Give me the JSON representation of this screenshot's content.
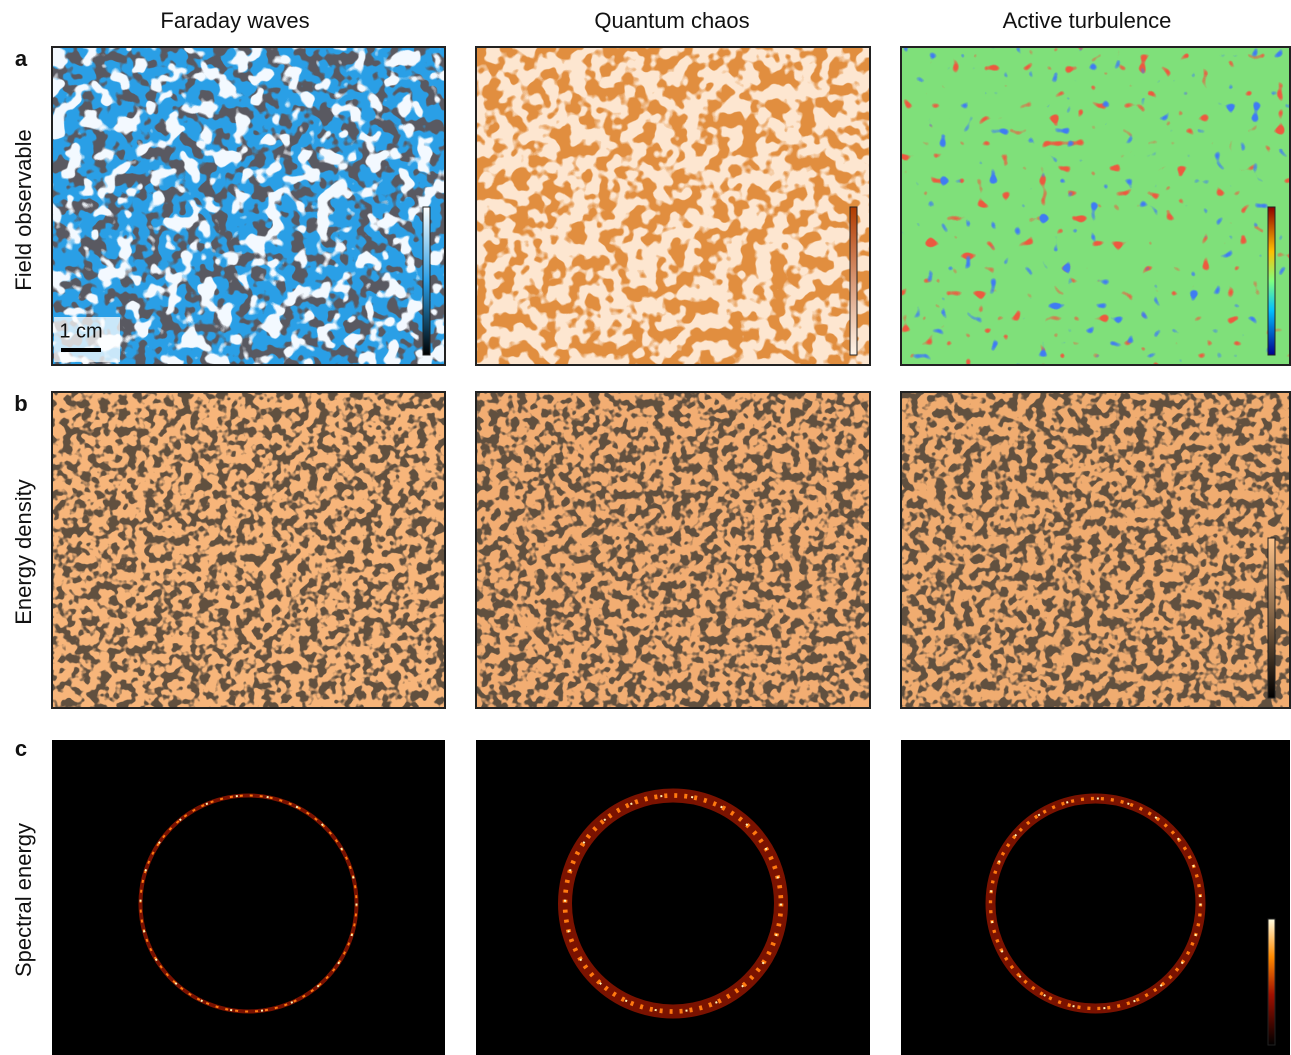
{
  "column_titles": [
    "Faraday waves",
    "Quantum chaos",
    "Active turbulence"
  ],
  "rows": [
    {
      "letter": "a",
      "label": "Field observable"
    },
    {
      "letter": "b",
      "label": "Energy density"
    },
    {
      "letter": "c",
      "label": "Spectral energy"
    }
  ],
  "scale_bar": "1 cm"
}
